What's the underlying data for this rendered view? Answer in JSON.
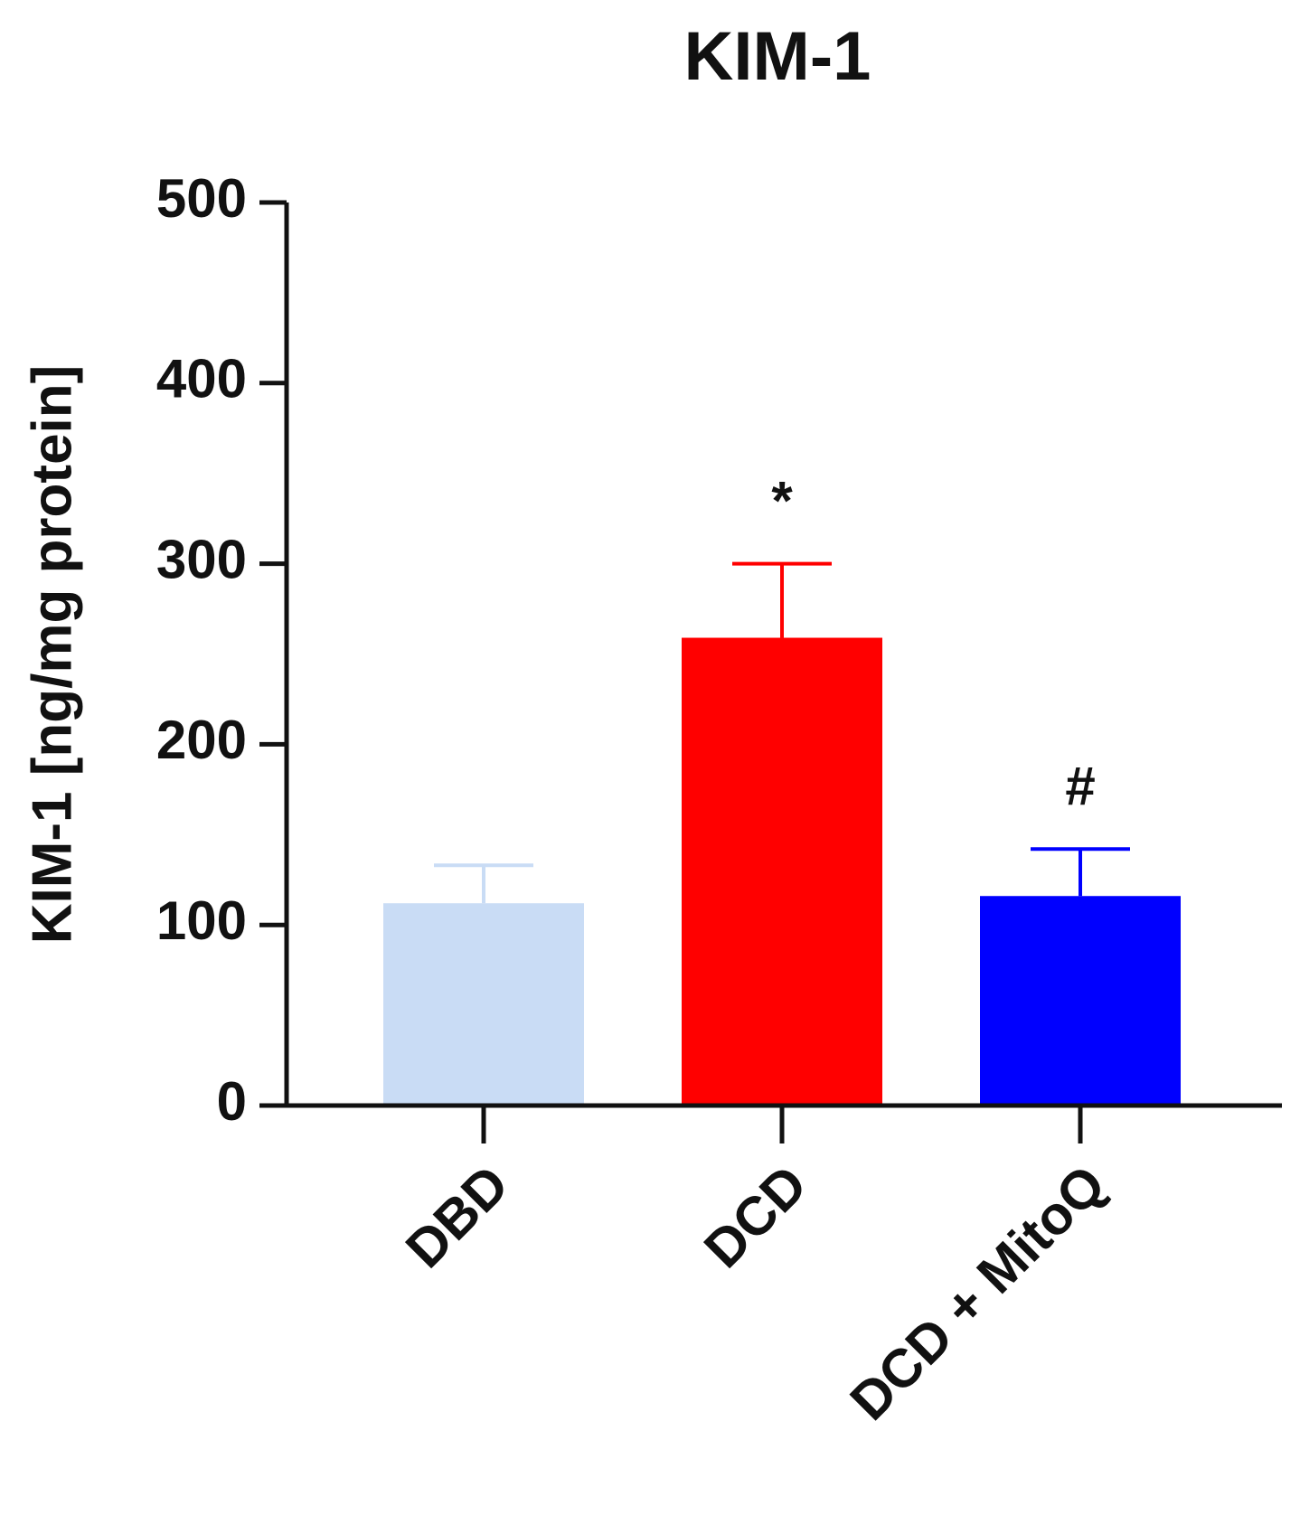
{
  "chart_data": {
    "type": "bar",
    "title": "KIM-1",
    "y_label": "KIM-1 [ng/mg protein]",
    "categories": [
      "DBD",
      "DCD",
      "DCD + MitoQ"
    ],
    "values": [
      112,
      259,
      116
    ],
    "errors": [
      21,
      41,
      26
    ],
    "colors": [
      "#c9dcf5",
      "#ff0000",
      "#0000ff"
    ],
    "significance": [
      null,
      "*",
      "#"
    ],
    "ylim": [
      0,
      500
    ],
    "yticks": [
      0,
      100,
      200,
      300,
      400,
      500
    ]
  }
}
